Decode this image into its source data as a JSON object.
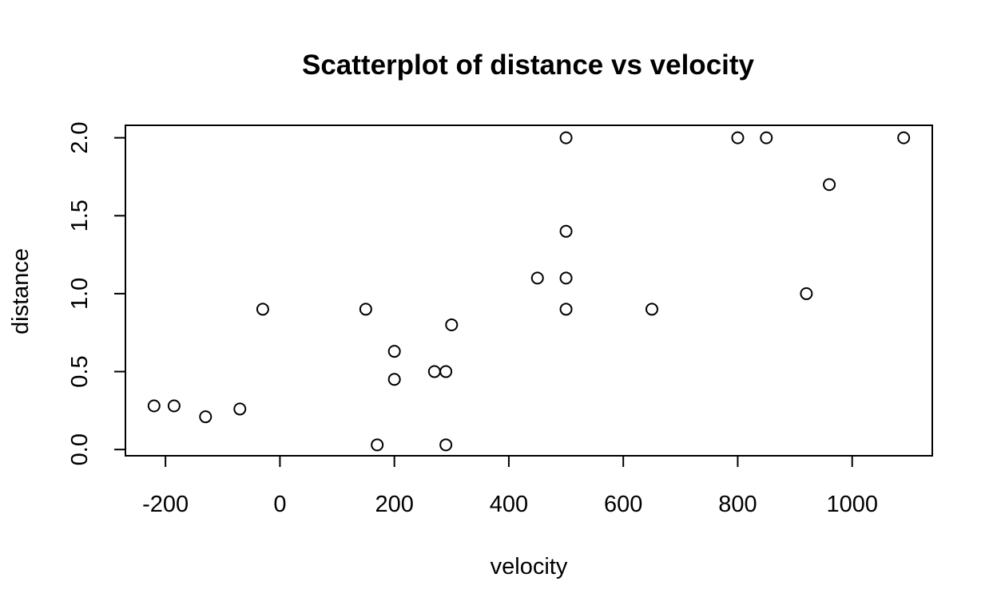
{
  "chart_data": {
    "type": "scatter",
    "title": "Scatterplot of distance vs velocity",
    "xlabel": "velocity",
    "ylabel": "distance",
    "xlim": [
      -270,
      1140
    ],
    "ylim": [
      -0.04,
      2.08
    ],
    "x_ticks": [
      -200,
      0,
      200,
      400,
      600,
      800,
      1000
    ],
    "y_ticks": [
      0.0,
      0.5,
      1.0,
      1.5,
      2.0
    ],
    "x_tick_labels": [
      "-200",
      "0",
      "200",
      "400",
      "600",
      "800",
      "1000"
    ],
    "y_tick_labels": [
      "0.0",
      "0.5",
      "1.0",
      "1.5",
      "2.0"
    ],
    "grid": false,
    "marker": "open-circle",
    "points": [
      {
        "x": -220,
        "y": 0.28
      },
      {
        "x": -185,
        "y": 0.28
      },
      {
        "x": -130,
        "y": 0.21
      },
      {
        "x": -70,
        "y": 0.26
      },
      {
        "x": -30,
        "y": 0.9
      },
      {
        "x": 150,
        "y": 0.9
      },
      {
        "x": 170,
        "y": 0.03
      },
      {
        "x": 200,
        "y": 0.63
      },
      {
        "x": 200,
        "y": 0.45
      },
      {
        "x": 270,
        "y": 0.5
      },
      {
        "x": 290,
        "y": 0.5
      },
      {
        "x": 290,
        "y": 0.03
      },
      {
        "x": 300,
        "y": 0.8
      },
      {
        "x": 450,
        "y": 1.1
      },
      {
        "x": 500,
        "y": 2.0
      },
      {
        "x": 500,
        "y": 1.4
      },
      {
        "x": 500,
        "y": 1.1
      },
      {
        "x": 500,
        "y": 0.9
      },
      {
        "x": 650,
        "y": 0.9
      },
      {
        "x": 800,
        "y": 2.0
      },
      {
        "x": 850,
        "y": 2.0
      },
      {
        "x": 920,
        "y": 1.0
      },
      {
        "x": 960,
        "y": 1.7
      },
      {
        "x": 1090,
        "y": 2.0
      }
    ]
  }
}
